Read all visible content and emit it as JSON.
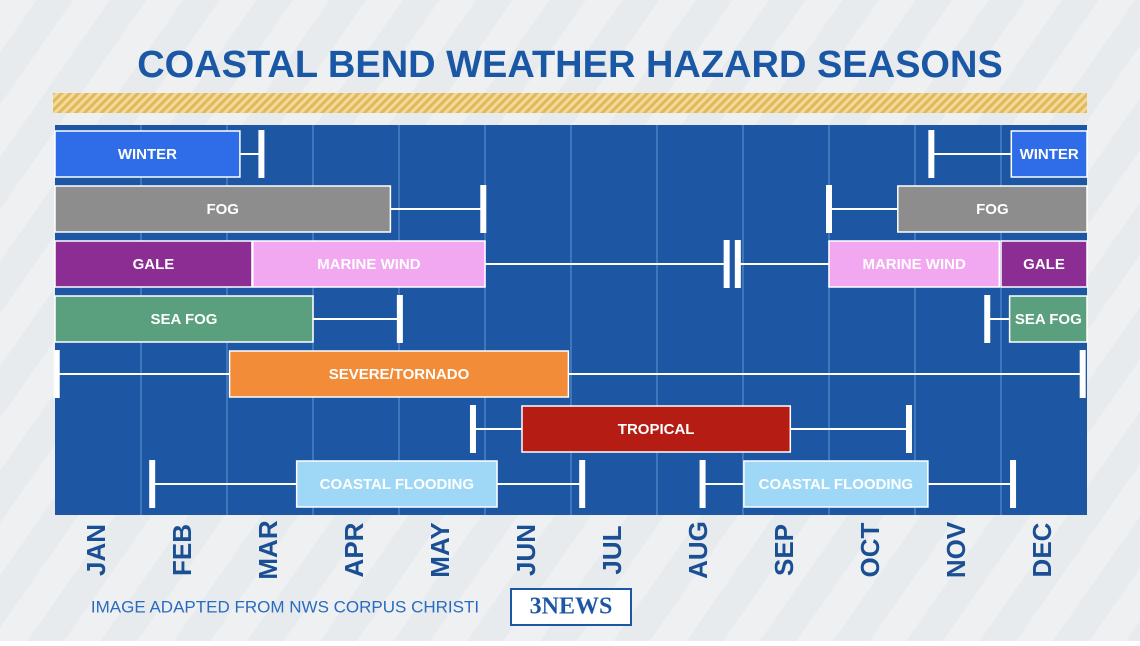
{
  "chart_data": {
    "type": "timeline",
    "title": "COASTAL BEND WEATHER HAZARD SEASONS",
    "months": [
      "JAN",
      "FEB",
      "MAR",
      "APR",
      "MAY",
      "JUN",
      "JUL",
      "AUG",
      "SEP",
      "OCT",
      "NOV",
      "DEC"
    ],
    "xlim": [
      0,
      12
    ],
    "xticks": [
      1,
      2,
      3,
      4,
      5,
      6,
      7,
      8,
      9,
      10,
      11
    ],
    "grid": true,
    "rows": [
      {
        "bars": [
          {
            "label": "WINTER",
            "start": 0,
            "end": 2.15,
            "color": "#2f6de8"
          },
          {
            "label": "WINTER",
            "start": 11.12,
            "end": 12,
            "color": "#2f6de8"
          }
        ],
        "whiskers": [
          {
            "from": 2.15,
            "to": 2.4,
            "cap": "end"
          },
          {
            "from": 10.19,
            "to": 11.12,
            "cap": "start"
          }
        ]
      },
      {
        "bars": [
          {
            "label": "FOG",
            "start": 0,
            "end": 3.9,
            "color": "#8d8d8d"
          },
          {
            "label": "FOG",
            "start": 9.8,
            "end": 12,
            "color": "#8d8d8d"
          }
        ],
        "whiskers": [
          {
            "from": 3.9,
            "to": 4.98,
            "cap": "end"
          },
          {
            "from": 9.0,
            "to": 9.8,
            "cap": "start"
          }
        ]
      },
      {
        "bars": [
          {
            "label": "GALE",
            "start": 0,
            "end": 2.29,
            "color": "#8b2d93"
          },
          {
            "label": "MARINE WIND",
            "start": 2.3,
            "end": 5.0,
            "color": "#f2a8f0"
          },
          {
            "label": "MARINE WIND",
            "start": 9.0,
            "end": 10.98,
            "color": "#f2a8f0"
          },
          {
            "label": "GALE",
            "start": 11.0,
            "end": 12,
            "color": "#8b2d93"
          }
        ],
        "whiskers": [
          {
            "from": 5.0,
            "to": 7.81,
            "cap": "end"
          },
          {
            "from": 7.94,
            "to": 9.0,
            "cap": "start"
          }
        ]
      },
      {
        "bars": [
          {
            "label": "SEA FOG",
            "start": 0,
            "end": 3.0,
            "color": "#5aa07f"
          },
          {
            "label": "SEA FOG",
            "start": 11.1,
            "end": 12,
            "color": "#5aa07f"
          }
        ],
        "whiskers": [
          {
            "from": 3.0,
            "to": 4.01,
            "cap": "end"
          },
          {
            "from": 10.84,
            "to": 11.1,
            "cap": "start"
          }
        ]
      },
      {
        "bars": [
          {
            "label": "SEVERE/TORNADO",
            "start": 2.03,
            "end": 5.97,
            "color": "#f28c38"
          }
        ],
        "whiskers": [
          {
            "from": 0.02,
            "to": 2.03,
            "cap": "start"
          },
          {
            "from": 5.97,
            "to": 11.95,
            "cap": "end"
          }
        ]
      },
      {
        "bars": [
          {
            "label": "TROPICAL",
            "start": 5.43,
            "end": 8.55,
            "color": "#b51d14"
          }
        ],
        "whiskers": [
          {
            "from": 4.86,
            "to": 5.43,
            "cap": "start"
          },
          {
            "from": 8.55,
            "to": 9.93,
            "cap": "end"
          }
        ]
      },
      {
        "bars": [
          {
            "label": "COASTAL FLOODING",
            "start": 2.81,
            "end": 5.14,
            "color": "#9fd8f7"
          },
          {
            "label": "COASTAL FLOODING",
            "start": 8.01,
            "end": 10.15,
            "color": "#9fd8f7"
          }
        ],
        "whiskers": [
          {
            "from": 1.13,
            "to": 2.81,
            "cap": "start"
          },
          {
            "from": 5.14,
            "to": 6.13,
            "cap": "end"
          },
          {
            "from": 7.53,
            "to": 8.01,
            "cap": "start"
          },
          {
            "from": 10.15,
            "to": 11.14,
            "cap": "end"
          }
        ]
      }
    ],
    "source": "IMAGE ADAPTED FROM NWS CORPUS CHRISTI",
    "logo": "3NEWS"
  }
}
